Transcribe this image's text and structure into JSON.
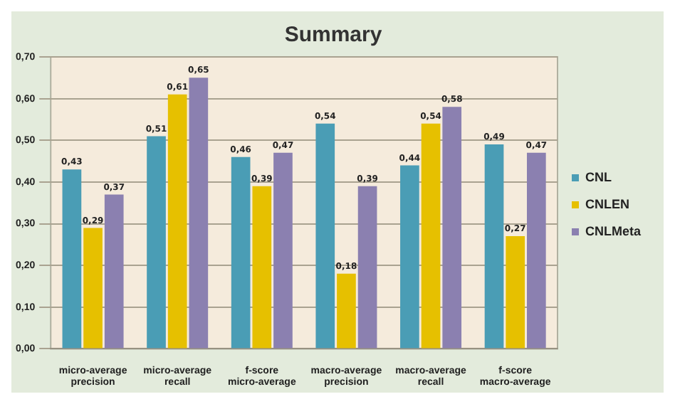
{
  "chart_data": {
    "type": "bar",
    "title": "Summary",
    "categories": [
      "micro-average precision",
      "micro-average recall",
      "f-score micro-average",
      "macro-average precision",
      "macro-average recall",
      "f-score macro-average"
    ],
    "series": [
      {
        "name": "CNL",
        "color": "#4a9db5",
        "values": [
          0.43,
          0.51,
          0.46,
          0.54,
          0.44,
          0.49
        ],
        "value_labels": [
          "0,43",
          "0,51",
          "0,46",
          "0,54",
          "0,44",
          "0,49"
        ]
      },
      {
        "name": "CNLEN",
        "color": "#e6c000",
        "values": [
          0.29,
          0.61,
          0.39,
          0.18,
          0.54,
          0.27
        ],
        "value_labels": [
          "0,29",
          "0,61",
          "0,39",
          "0,18",
          "0,54",
          "0,27"
        ]
      },
      {
        "name": "CNLMeta",
        "color": "#8b80b0",
        "values": [
          0.37,
          0.65,
          0.47,
          0.39,
          0.58,
          0.47
        ],
        "value_labels": [
          "0,37",
          "0,65",
          "0,47",
          "0,39",
          "0,58",
          "0,47"
        ]
      }
    ],
    "ylim": [
      0,
      0.7
    ],
    "yticks": [
      {
        "value": 0,
        "label": "0,00"
      },
      {
        "value": 0.1,
        "label": "0,10"
      },
      {
        "value": 0.2,
        "label": "0,20"
      },
      {
        "value": 0.3,
        "label": "0,30"
      },
      {
        "value": 0.4,
        "label": "0,40"
      },
      {
        "value": 0.5,
        "label": "0,50"
      },
      {
        "value": 0.6,
        "label": "0,60"
      },
      {
        "value": 0.7,
        "label": "0,70"
      }
    ],
    "grid": "y",
    "legend": "right"
  }
}
